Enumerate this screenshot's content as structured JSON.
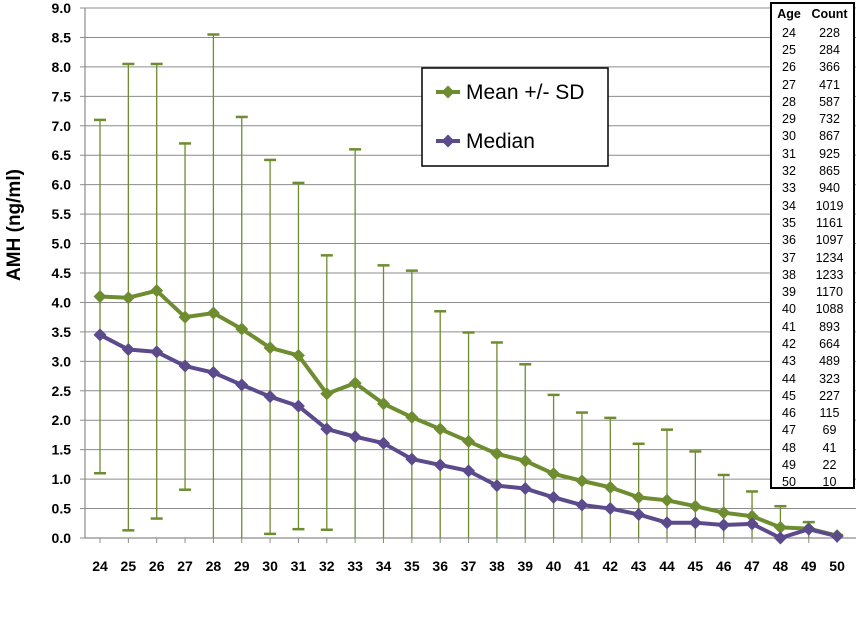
{
  "chart_data": {
    "type": "line",
    "ylabel": "AMH (ng/ml)",
    "xlabel": "",
    "ylim": [
      0,
      9.0
    ],
    "ytick_step": 0.5,
    "grid": true,
    "x": [
      24,
      25,
      26,
      27,
      28,
      29,
      30,
      31,
      32,
      33,
      34,
      35,
      36,
      37,
      38,
      39,
      40,
      41,
      42,
      43,
      44,
      45,
      46,
      47,
      48,
      49,
      50
    ],
    "series": [
      {
        "name": "Mean +/- SD",
        "color": "#6e8c30",
        "values": [
          4.1,
          4.08,
          4.2,
          3.75,
          3.82,
          3.55,
          3.23,
          3.1,
          2.45,
          2.63,
          2.28,
          2.05,
          1.85,
          1.64,
          1.43,
          1.31,
          1.09,
          0.97,
          0.86,
          0.69,
          0.64,
          0.54,
          0.43,
          0.37,
          0.18,
          0.16,
          0.04
        ],
        "sd_upper": [
          7.1,
          8.05,
          8.05,
          6.7,
          8.55,
          7.15,
          6.42,
          6.03,
          4.8,
          6.6,
          4.63,
          4.54,
          3.85,
          3.49,
          3.32,
          2.95,
          2.43,
          2.13,
          2.04,
          1.6,
          1.84,
          1.47,
          1.07,
          0.79,
          0.54,
          0.27,
          0.05
        ],
        "sd_lower": [
          1.1,
          0.13,
          0.33,
          0.82,
          0,
          0,
          0.07,
          0.15,
          0.14,
          0,
          0,
          0,
          0,
          0,
          0,
          0,
          0,
          0,
          0,
          0,
          0,
          0,
          0,
          0,
          0,
          0,
          0
        ]
      },
      {
        "name": "Median",
        "color": "#5b4a8c",
        "values": [
          3.45,
          3.2,
          3.16,
          2.92,
          2.81,
          2.6,
          2.4,
          2.24,
          1.85,
          1.72,
          1.61,
          1.34,
          1.24,
          1.14,
          0.89,
          0.84,
          0.69,
          0.56,
          0.5,
          0.4,
          0.26,
          0.26,
          0.22,
          0.24,
          0.0,
          0.15,
          0.03
        ]
      }
    ],
    "legend": {
      "placement": "top-center",
      "items": [
        "Mean +/- SD",
        "Median"
      ]
    },
    "counts_table": {
      "headers": [
        "Age",
        "Count"
      ],
      "rows": [
        [
          "24",
          "228"
        ],
        [
          "25",
          "284"
        ],
        [
          "26",
          "366"
        ],
        [
          "27",
          "471"
        ],
        [
          "28",
          "587"
        ],
        [
          "29",
          "732"
        ],
        [
          "30",
          "867"
        ],
        [
          "31",
          "925"
        ],
        [
          "32",
          "865"
        ],
        [
          "33",
          "940"
        ],
        [
          "34",
          "1019"
        ],
        [
          "35",
          "1161"
        ],
        [
          "36",
          "1097"
        ],
        [
          "37",
          "1234"
        ],
        [
          "38",
          "1233"
        ],
        [
          "39",
          "1170"
        ],
        [
          "40",
          "1088"
        ],
        [
          "41",
          "893"
        ],
        [
          "42",
          "664"
        ],
        [
          "43",
          "489"
        ],
        [
          "44",
          "323"
        ],
        [
          "45",
          "227"
        ],
        [
          "46",
          "115"
        ],
        [
          "47",
          "69"
        ],
        [
          "48",
          "41"
        ],
        [
          "49",
          "22"
        ],
        [
          "50",
          "10"
        ]
      ]
    }
  }
}
